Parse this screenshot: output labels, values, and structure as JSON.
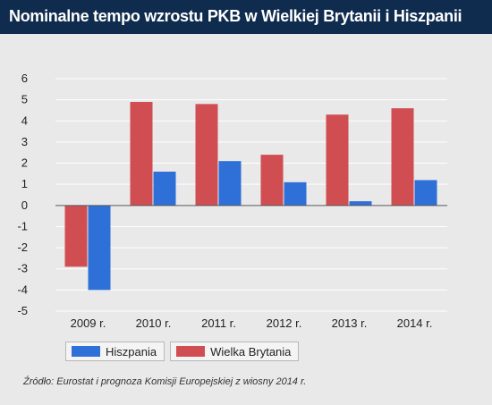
{
  "header": {
    "title": "Nominalne tempo wzrostu PKB w Wielkiej Brytanii i Hiszpanii"
  },
  "chart_data": {
    "type": "bar",
    "title": "Nominalne tempo wzrostu PKB w Wielkiej Brytanii i Hiszpanii",
    "xlabel": "",
    "ylabel": "",
    "categories": [
      "2009 r.",
      "2010 r.",
      "2011 r.",
      "2012 r.",
      "2013 r.",
      "2014 r."
    ],
    "series": [
      {
        "name": "Wielka Brytania",
        "color": "#d04e52",
        "values": [
          -2.9,
          4.9,
          4.8,
          2.4,
          4.3,
          4.6
        ]
      },
      {
        "name": "Hiszpania",
        "color": "#2f6fd8",
        "values": [
          -4.0,
          1.6,
          2.1,
          1.1,
          0.2,
          1.2
        ]
      }
    ],
    "ylim": [
      -5,
      6
    ],
    "yticks": [
      -5,
      -4,
      -3,
      -2,
      -1,
      0,
      1,
      2,
      3,
      4,
      5,
      6
    ],
    "grid": true,
    "legend_position": "bottom-left",
    "legend_order": [
      "Hiszpania",
      "Wielka Brytania"
    ]
  },
  "footer": {
    "source": "Źródło: Eurostat i prognoza Komisji Europejskiej z wiosny 2014 r."
  }
}
